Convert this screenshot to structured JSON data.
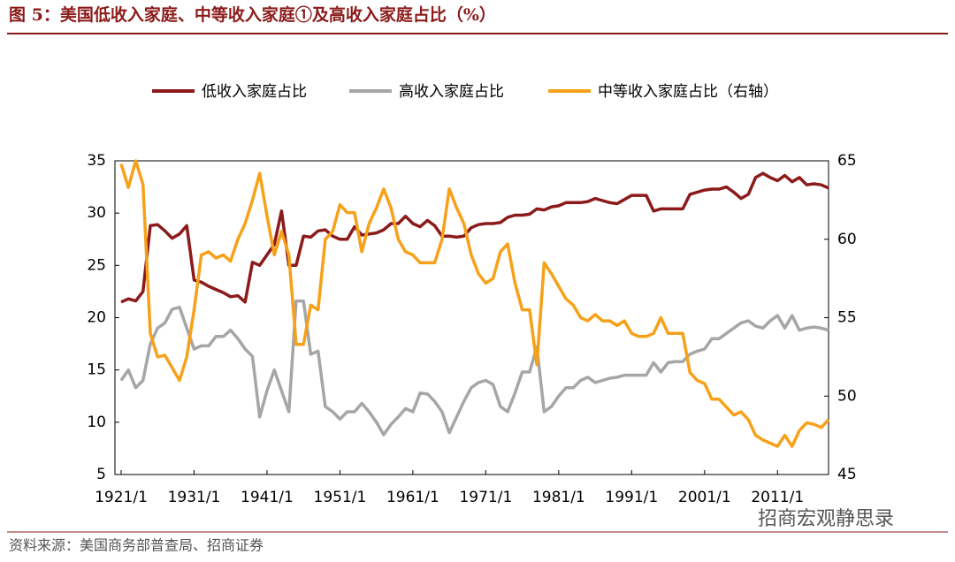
{
  "chart_data": {
    "type": "line",
    "title": "图 5：美国低收入家庭、中等收入家庭①及高收入家庭占比（%）",
    "source": "资料来源：美国商务部普查局、招商证券",
    "watermark": "招商宏观静思录",
    "categories": [
      "1921/1",
      null,
      null,
      null,
      null,
      null,
      null,
      null,
      null,
      null,
      "1931/1",
      null,
      null,
      null,
      null,
      null,
      null,
      null,
      null,
      null,
      "1941/1",
      null,
      null,
      null,
      null,
      null,
      null,
      null,
      null,
      null,
      "1951/1",
      null,
      null,
      null,
      null,
      null,
      null,
      null,
      null,
      null,
      "1961/1",
      null,
      null,
      null,
      null,
      null,
      null,
      null,
      null,
      null,
      "1971/1",
      null,
      null,
      null,
      null,
      null,
      null,
      null,
      null,
      null,
      "1981/1",
      null,
      null,
      null,
      null,
      null,
      null,
      null,
      null,
      null,
      "1991/1",
      null,
      null,
      null,
      null,
      null,
      null,
      null,
      null,
      null,
      "2001/1",
      null,
      null,
      null,
      null,
      null,
      null,
      null,
      null,
      null,
      "2011/1",
      null,
      null,
      null,
      null,
      null,
      null,
      null
    ],
    "series": [
      {
        "name": "低收入家庭占比",
        "color": "#8b1a1a",
        "values": [
          21.5,
          21.8,
          21.6,
          22.5,
          28.8,
          28.9,
          28.3,
          27.6,
          28.0,
          28.8,
          23.6,
          23.4,
          23.0,
          22.7,
          22.4,
          22.0,
          22.1,
          21.5,
          25.3,
          25.0,
          26.0,
          27.0,
          30.2,
          25.0,
          25.0,
          27.8,
          27.7,
          28.3,
          28.4,
          27.8,
          27.5,
          27.5,
          28.7,
          27.9,
          28.0,
          28.1,
          28.4,
          29.0,
          29.0,
          29.7,
          29.0,
          28.7,
          29.3,
          28.8,
          27.8,
          27.8,
          27.7,
          27.8,
          28.6,
          28.9,
          29.0,
          29.0,
          29.1,
          29.6,
          29.8,
          29.8,
          29.9,
          30.4,
          30.3,
          30.6,
          30.7,
          31.0,
          31.0,
          31.0,
          31.1,
          31.4,
          31.2,
          31.0,
          30.9,
          31.3,
          31.7,
          31.7,
          31.7,
          30.2,
          30.4,
          30.4,
          30.4,
          30.4,
          31.8,
          32.0,
          32.2,
          32.3,
          32.3,
          32.5,
          32.0,
          31.4,
          31.8,
          33.4,
          33.8,
          33.4,
          33.1,
          33.6,
          33.0,
          33.4,
          32.7,
          32.8,
          32.7,
          32.4
        ]
      },
      {
        "name": "高收入家庭占比",
        "color": "#a6a6a6",
        "values": [
          14.0,
          15.0,
          13.3,
          14.0,
          17.5,
          19.0,
          19.5,
          20.8,
          21.0,
          19.0,
          17.0,
          17.3,
          17.3,
          18.2,
          18.2,
          18.8,
          18.0,
          17.0,
          16.3,
          10.5,
          13.0,
          15.0,
          13.0,
          11.0,
          21.6,
          21.6,
          16.5,
          16.8,
          11.5,
          11.0,
          10.3,
          11.0,
          11.0,
          11.8,
          11.0,
          10.0,
          8.8,
          9.8,
          10.5,
          11.3,
          11.0,
          12.8,
          12.7,
          12.0,
          11.0,
          9.0,
          10.5,
          12.0,
          13.3,
          13.8,
          14.0,
          13.6,
          11.5,
          11.0,
          12.8,
          14.8,
          14.8,
          17.2,
          11.0,
          11.5,
          12.5,
          13.3,
          13.3,
          14.0,
          14.3,
          13.8,
          14.0,
          14.2,
          14.3,
          14.5,
          14.5,
          14.5,
          14.5,
          15.7,
          14.8,
          15.7,
          15.8,
          15.8,
          16.5,
          16.8,
          17.0,
          18.0,
          18.0,
          18.5,
          19.0,
          19.5,
          19.7,
          19.2,
          19.0,
          19.7,
          20.2,
          19.0,
          20.2,
          18.8,
          19.0,
          19.1,
          19.0,
          18.8
        ]
      },
      {
        "name": "中等收入家庭占比（右轴）",
        "color": "#f7a11a",
        "axis": "y2",
        "values": [
          64.8,
          63.3,
          65.0,
          63.5,
          54.0,
          52.5,
          52.6,
          51.8,
          51.0,
          52.5,
          55.5,
          59.0,
          59.2,
          58.8,
          59.0,
          58.6,
          60.0,
          61.0,
          62.5,
          64.2,
          61.5,
          59.0,
          60.5,
          59.0,
          53.3,
          53.3,
          55.8,
          55.5,
          60.0,
          60.5,
          62.2,
          61.7,
          61.7,
          59.2,
          61.0,
          62.0,
          63.2,
          62.0,
          60.0,
          59.2,
          59.0,
          58.5,
          58.5,
          58.5,
          60.0,
          63.2,
          62.0,
          61.0,
          59.0,
          57.8,
          57.2,
          57.5,
          59.2,
          59.7,
          57.2,
          55.5,
          55.5,
          52.0,
          58.5,
          57.8,
          57.0,
          56.2,
          55.8,
          55.0,
          54.8,
          55.2,
          54.8,
          54.8,
          54.5,
          54.8,
          54.0,
          53.8,
          53.8,
          54.0,
          55.0,
          54.0,
          54.0,
          54.0,
          51.5,
          51.0,
          50.8,
          49.8,
          49.8,
          49.3,
          48.8,
          49.0,
          48.5,
          47.5,
          47.2,
          47.0,
          46.8,
          47.5,
          46.8,
          47.8,
          48.3,
          48.2,
          48.0,
          48.5
        ]
      }
    ],
    "ylim": [
      5,
      35
    ],
    "yticks": [
      5,
      10,
      15,
      20,
      25,
      30,
      35
    ],
    "y2lim": [
      45,
      65
    ],
    "y2ticks": [
      45,
      50,
      55,
      60,
      65
    ],
    "legend": "top"
  }
}
